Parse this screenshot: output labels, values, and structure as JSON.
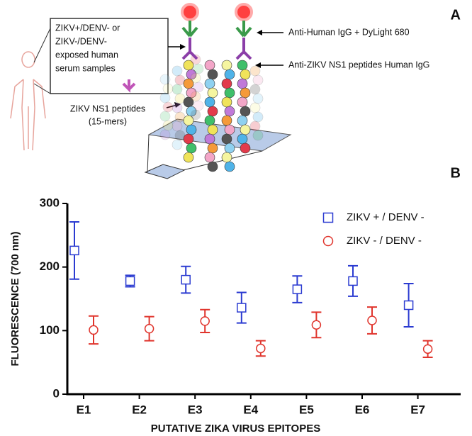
{
  "diagram": {
    "panel_a": "A",
    "panel_b": "B",
    "box_lines": [
      "ZIKV+/DENV- or",
      "ZIKV-/DENV-",
      "exposed human",
      "serum samples"
    ],
    "peptides_lines": [
      "ZIKV NS1 peptides",
      "(15-mers)"
    ],
    "label_secondary": "Anti-Human IgG + DyLight 680",
    "label_primary": "Anti-ZIKV NS1 peptides Human IgG"
  },
  "chart_data": {
    "type": "scatter",
    "xlabel": "PUTATIVE ZIKA VIRUS EPITOPES",
    "ylabel": "FLUORESCENCE (700 nm)",
    "categories": [
      "E1",
      "E2",
      "E3",
      "E4",
      "E5",
      "E6",
      "E7"
    ],
    "series": [
      {
        "name": "ZIKV + / DENV -",
        "color": "#2b3bd1",
        "marker": "square",
        "values": [
          226,
          178,
          180,
          136,
          165,
          178,
          140
        ],
        "errors": [
          45,
          9,
          21,
          24,
          21,
          24,
          34
        ]
      },
      {
        "name": "ZIKV - / DENV -",
        "color": "#e0342c",
        "marker": "circle",
        "values": [
          101,
          103,
          115,
          72,
          109,
          116,
          71
        ],
        "errors": [
          22,
          19,
          18,
          12,
          20,
          21,
          13
        ]
      }
    ],
    "ylim": [
      0,
      300
    ],
    "yticks": [
      0,
      100,
      200,
      300
    ],
    "grid": false,
    "legend": "top-right"
  }
}
